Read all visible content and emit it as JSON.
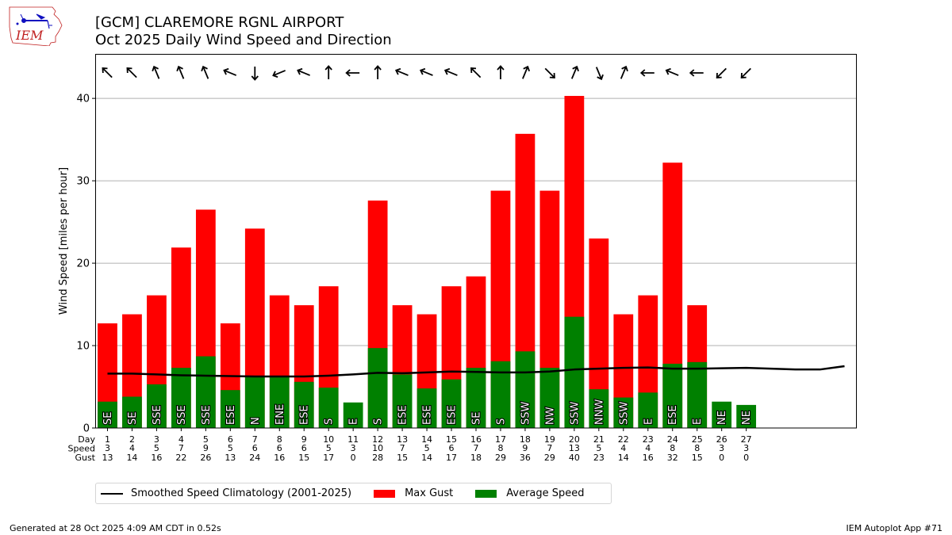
{
  "header": {
    "title_line1": "[GCM] CLAREMORE RGNL AIRPORT",
    "title_line2": "Oct 2025 Daily Wind Speed and Direction",
    "logo_text": "IEM"
  },
  "footer": {
    "generated": "Generated at 28 Oct 2025 4:09 AM CDT in 0.52s",
    "app": "IEM Autoplot App #71"
  },
  "legend": {
    "items": [
      {
        "label": "Smoothed Speed Climatology (2001-2025)",
        "kind": "line",
        "color": "#000000"
      },
      {
        "label": "Max Gust",
        "kind": "patch",
        "color": "#ff0000"
      },
      {
        "label": "Average Speed",
        "kind": "patch",
        "color": "#008000"
      }
    ]
  },
  "chart_data": {
    "type": "bar",
    "title": "[GCM] CLAREMORE RGNL AIRPORT Oct 2025 Daily Wind Speed and Direction",
    "xlabel": "",
    "ylabel": "Wind Speed [miles per hour]",
    "ylim": [
      0,
      45.4
    ],
    "xlim": [
      0.5,
      31.5
    ],
    "yticks": [
      0,
      10,
      20,
      30,
      40
    ],
    "grid": "horizontal",
    "legend_position": "below",
    "colors": {
      "gust": "#ff0000",
      "speed": "#008000",
      "climatology": "#000000",
      "grid": "#b0b0b0"
    },
    "row_labels": [
      "Day",
      "Speed",
      "Gust"
    ],
    "days": [
      1,
      2,
      3,
      4,
      5,
      6,
      7,
      8,
      9,
      10,
      11,
      12,
      13,
      14,
      15,
      16,
      17,
      18,
      19,
      20,
      21,
      22,
      23,
      24,
      25,
      26,
      27
    ],
    "speed_labels": [
      3,
      4,
      5,
      7,
      9,
      5,
      6,
      6,
      6,
      5,
      3,
      10,
      7,
      5,
      6,
      7,
      8,
      9,
      7,
      13,
      5,
      4,
      4,
      8,
      8,
      3,
      3
    ],
    "gust_labels": [
      13,
      14,
      16,
      22,
      26,
      13,
      24,
      16,
      15,
      17,
      0,
      28,
      15,
      14,
      17,
      18,
      29,
      36,
      29,
      40,
      23,
      14,
      16,
      32,
      15,
      0,
      0
    ],
    "series": [
      {
        "name": "Max Gust",
        "values": [
          12.7,
          13.8,
          16.1,
          21.9,
          26.5,
          12.7,
          24.2,
          16.1,
          14.9,
          17.2,
          0,
          27.6,
          14.9,
          13.8,
          17.2,
          18.4,
          28.8,
          35.7,
          28.8,
          40.3,
          23.0,
          13.8,
          16.1,
          32.2,
          14.9,
          0,
          0
        ]
      },
      {
        "name": "Average Speed",
        "values": [
          3.2,
          3.8,
          5.3,
          7.3,
          8.7,
          4.6,
          6.2,
          6.2,
          5.6,
          4.9,
          3.1,
          9.7,
          6.5,
          4.8,
          5.9,
          7.3,
          8.1,
          9.3,
          7.3,
          13.5,
          4.7,
          3.7,
          4.3,
          7.8,
          8.0,
          3.2,
          2.8
        ]
      }
    ],
    "directions": [
      "SE",
      "SE",
      "SSE",
      "SSE",
      "SSE",
      "ESE",
      "N",
      "ENE",
      "ESE",
      "S",
      "E",
      "S",
      "ESE",
      "ESE",
      "ESE",
      "SE",
      "S",
      "SSW",
      "NW",
      "SSW",
      "NNW",
      "SSW",
      "E",
      "ESE",
      "E",
      "NE",
      "NE"
    ],
    "climatology": {
      "name": "Smoothed Speed Climatology (2001-2025)",
      "x": [
        1,
        2,
        3,
        4,
        5,
        6,
        7,
        8,
        9,
        10,
        11,
        12,
        13,
        14,
        15,
        16,
        17,
        18,
        19,
        20,
        21,
        22,
        23,
        24,
        25,
        26,
        27,
        28,
        29,
        30,
        31
      ],
      "values": [
        6.6,
        6.6,
        6.5,
        6.4,
        6.35,
        6.3,
        6.25,
        6.25,
        6.25,
        6.35,
        6.5,
        6.7,
        6.65,
        6.75,
        6.85,
        6.8,
        6.75,
        6.75,
        6.85,
        7.1,
        7.2,
        7.3,
        7.35,
        7.2,
        7.2,
        7.25,
        7.3,
        7.2,
        7.1,
        7.1,
        7.5
      ]
    }
  }
}
